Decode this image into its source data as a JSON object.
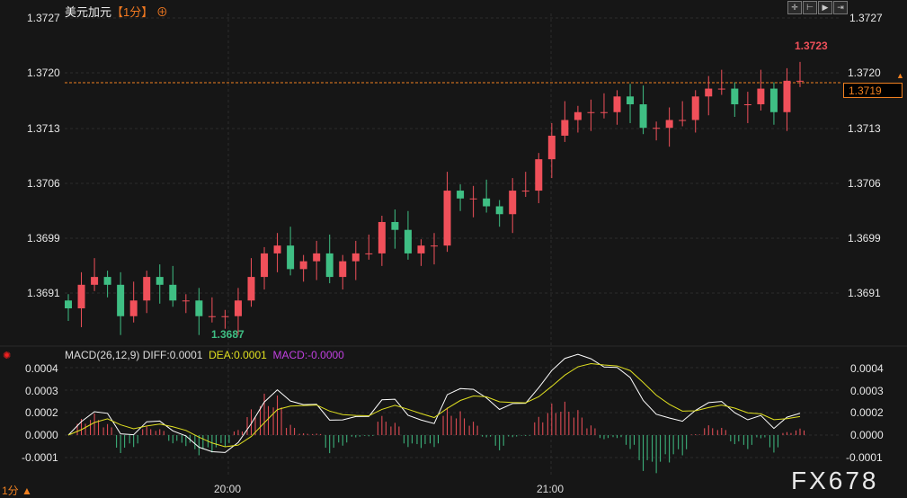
{
  "header": {
    "symbol": "美元加元",
    "period": "【1分】",
    "add_icon": "plus-circle-icon"
  },
  "toolbar": [
    "crosshair-icon",
    "zoom-range-icon",
    "play-icon",
    "jump-end-icon"
  ],
  "price_axis": [
    "1.3727",
    "1.3720",
    "1.3713",
    "1.3706",
    "1.3699",
    "1.3691"
  ],
  "current_price": "1.3719",
  "high_label": "1.3723",
  "low_label": "1.3687",
  "macd": {
    "label": "MACD(26,12,9)",
    "diff": "DIFF:0.0001",
    "dea": "DEA:0.0001",
    "macd": "MACD:-0.0000",
    "axis": [
      "0.0004",
      "0.0003",
      "0.0002",
      "0.0000",
      "-0.0001"
    ]
  },
  "time_axis": [
    "20:00",
    "21:00"
  ],
  "footer": {
    "period": "1分 ▲"
  },
  "watermark": "FX678",
  "colors": {
    "up": "#f0505a",
    "down": "#3fbf84",
    "diff": "#ffffff",
    "dea": "#e0e020",
    "macd": "#c040e0"
  },
  "chart_data": {
    "type": "candlestick",
    "ylim": [
      1.3686,
      1.3727
    ],
    "closes": [
      1.369,
      1.3693,
      1.3694,
      1.3693,
      1.3689,
      1.3691,
      1.3694,
      1.3693,
      1.3691,
      1.3691,
      1.3689,
      1.3689,
      1.3689,
      1.3691,
      1.3694,
      1.3697,
      1.3698,
      1.3695,
      1.3696,
      1.3697,
      1.3694,
      1.3696,
      1.3697,
      1.3697,
      1.3701,
      1.37,
      1.3697,
      1.3698,
      1.3698,
      1.3705,
      1.3704,
      1.3704,
      1.3703,
      1.3702,
      1.3705,
      1.3705,
      1.3709,
      1.3712,
      1.3714,
      1.3715,
      1.3715,
      1.3715,
      1.3717,
      1.3716,
      1.3713,
      1.3713,
      1.3714,
      1.3714,
      1.3717,
      1.3718,
      1.3718,
      1.3716,
      1.3716,
      1.3718,
      1.3715,
      1.3719,
      1.3719
    ]
  }
}
